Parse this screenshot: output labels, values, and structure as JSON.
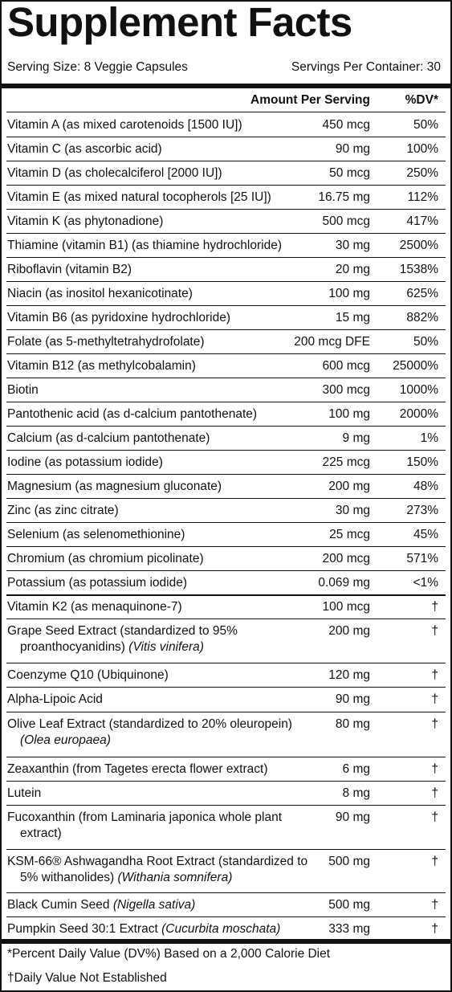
{
  "title": "Supplement Facts",
  "serving_size": "Serving Size: 8 Veggie Capsules",
  "servings_per_container": "Servings Per Container: 30",
  "header": {
    "amount": "Amount Per Serving",
    "dv": "%DV*"
  },
  "nutrients": [
    {
      "name": "Vitamin A (as mixed carotenoids [1500 IU])",
      "amount": "450 mcg",
      "dv": "50%"
    },
    {
      "name": "Vitamin C (as ascorbic acid)",
      "amount": "90 mg",
      "dv": "100%"
    },
    {
      "name": "Vitamin D (as cholecalciferol [2000 IU])",
      "amount": "50 mcg",
      "dv": "250%"
    },
    {
      "name": "Vitamin E (as mixed natural tocopherols [25 IU])",
      "amount": "16.75 mg",
      "dv": "112%"
    },
    {
      "name": "Vitamin K (as phytonadione)",
      "amount": "500 mcg",
      "dv": "417%"
    },
    {
      "name": "Thiamine (vitamin B1) (as thiamine hydrochloride)",
      "amount": "30 mg",
      "dv": "2500%"
    },
    {
      "name": "Riboflavin (vitamin B2)",
      "amount": "20 mg",
      "dv": "1538%"
    },
    {
      "name": "Niacin (as inositol hexanicotinate)",
      "amount": "100 mg",
      "dv": "625%"
    },
    {
      "name": "Vitamin B6 (as pyridoxine hydrochloride)",
      "amount": "15 mg",
      "dv": "882%"
    },
    {
      "name": "Folate (as 5-methyltetrahydrofolate)",
      "amount": "200 mcg DFE",
      "dv": "50%"
    },
    {
      "name": "Vitamin B12 (as methylcobalamin)",
      "amount": "600 mcg",
      "dv": "25000%"
    },
    {
      "name": "Biotin",
      "amount": "300 mcg",
      "dv": "1000%"
    },
    {
      "name": "Pantothenic acid (as d-calcium pantothenate)",
      "amount": "100 mg",
      "dv": "2000%"
    },
    {
      "name": "Calcium (as d-calcium pantothenate)",
      "amount": "9 mg",
      "dv": "1%"
    },
    {
      "name": "Iodine (as potassium iodide)",
      "amount": "225 mcg",
      "dv": "150%"
    },
    {
      "name": "Magnesium (as magnesium gluconate)",
      "amount": "200 mg",
      "dv": "48%"
    },
    {
      "name": "Zinc (as zinc citrate)",
      "amount": "30 mg",
      "dv": "273%"
    },
    {
      "name": "Selenium (as selenomethionine)",
      "amount": "25 mcg",
      "dv": "45%"
    },
    {
      "name": "Chromium (as chromium picolinate)",
      "amount": "200 mcg",
      "dv": "571%"
    },
    {
      "name": "Potassium (as potassium iodide)",
      "amount": "0.069 mg",
      "dv": "<1%"
    }
  ],
  "other_ingredients": [
    {
      "name": "Vitamin K2 (as menaquinone-7)",
      "latin": "",
      "amount": "100 mcg",
      "dv": "†"
    },
    {
      "name": "Grape Seed Extract (standardized to 95% proanthocyanidins)",
      "latin": "(Vitis vinifera)",
      "amount": "200 mg",
      "dv": "†"
    },
    {
      "name": "Coenzyme Q10 (Ubiquinone)",
      "latin": "",
      "amount": "120 mg",
      "dv": "†"
    },
    {
      "name": "Alpha-Lipoic Acid",
      "latin": "",
      "amount": "90 mg",
      "dv": "†"
    },
    {
      "name": "Olive Leaf Extract (standardized to 20% oleuropein)",
      "latin": "(Olea europaea)",
      "amount": "80 mg",
      "dv": "†"
    },
    {
      "name": "Zeaxanthin (from Tagetes erecta flower extract)",
      "latin": "",
      "amount": "6 mg",
      "dv": "†"
    },
    {
      "name": "Lutein",
      "latin": "",
      "amount": "8 mg",
      "dv": "†"
    },
    {
      "name": "Fucoxanthin (from Laminaria japonica whole plant extract)",
      "latin": "",
      "amount": "90 mg",
      "dv": "†"
    },
    {
      "name": "KSM-66® Ashwagandha Root Extract (standardized to 5% withanolides)",
      "latin": "(Withania somnifera)",
      "amount": "500 mg",
      "dv": "†"
    },
    {
      "name": "Black Cumin Seed",
      "latin": "(Nigella sativa)",
      "amount": "500 mg",
      "dv": "†"
    },
    {
      "name": "Pumpkin Seed 30:1 Extract",
      "latin": "(Cucurbita moschata)",
      "amount": "333 mg",
      "dv": "†"
    }
  ],
  "footnotes": [
    "*Percent Daily Value (DV%) Based on a 2,000 Calorie Diet",
    "†Daily Value Not Established"
  ]
}
